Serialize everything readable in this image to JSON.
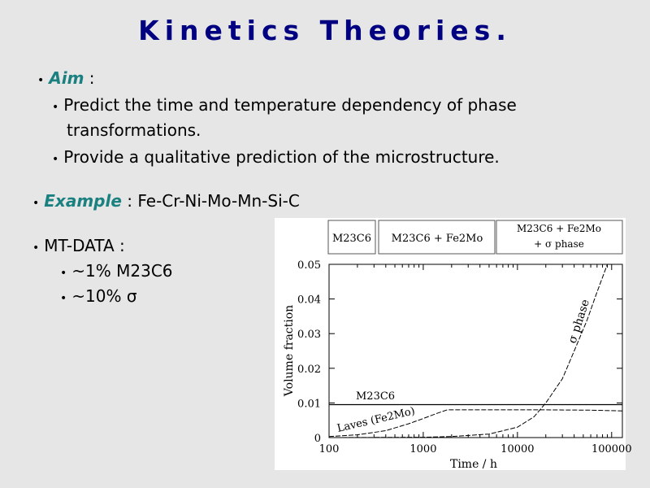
{
  "title": "Kinetics Theories.",
  "aim": {
    "label": "Aim",
    "sep": " :",
    "items": [
      "Predict the time and temperature dependency of phase",
      "transformations.",
      "Provide a qualitative prediction of the microstructure."
    ]
  },
  "example": {
    "label": "Example",
    "text": " : Fe-Cr-Ni-Mo-Mn-Si-C"
  },
  "mtdata": {
    "label": "MT-DATA :",
    "items": [
      "~1% M23C6",
      "~10% σ"
    ]
  },
  "colors": {
    "title": "#000080",
    "emphasis": "#1a8080",
    "background": "#e6e6e6"
  },
  "chart_data": {
    "type": "line",
    "xlabel": "Time / h",
    "ylabel": "Volume fraction",
    "xscale": "log",
    "xlim": [
      100,
      130000
    ],
    "ylim": [
      0,
      0.05
    ],
    "xticks": [
      "100",
      "1000",
      "10000",
      "100000"
    ],
    "yticks": [
      "0",
      "0.01",
      "0.02",
      "0.03",
      "0.04",
      "0.05"
    ],
    "phase_regions": [
      "M23C6",
      "M23C6 + Fe2Mo",
      "M23C6 + Fe2Mo + σ phase"
    ],
    "series": [
      {
        "name": "M23C6",
        "style": "solid",
        "x": [
          100,
          130000
        ],
        "y": [
          0.0095,
          0.0095
        ]
      },
      {
        "name": "Laves (Fe2Mo)",
        "style": "dashed-then-solid",
        "x": [
          100,
          200,
          400,
          700,
          1000,
          1400,
          1800,
          5000,
          20000,
          60000,
          130000
        ],
        "y": [
          0.0003,
          0.0008,
          0.002,
          0.004,
          0.0055,
          0.007,
          0.008,
          0.008,
          0.008,
          0.0079,
          0.0077
        ]
      },
      {
        "name": "σ phase",
        "style": "solid-then-dashed",
        "x": [
          100,
          1000,
          2000,
          5000,
          10000,
          15000,
          20000,
          30000,
          40000,
          55000,
          70000,
          90000
        ],
        "y": [
          0,
          0.0001,
          0.0003,
          0.001,
          0.003,
          0.006,
          0.01,
          0.017,
          0.025,
          0.034,
          0.042,
          0.05
        ]
      }
    ]
  }
}
